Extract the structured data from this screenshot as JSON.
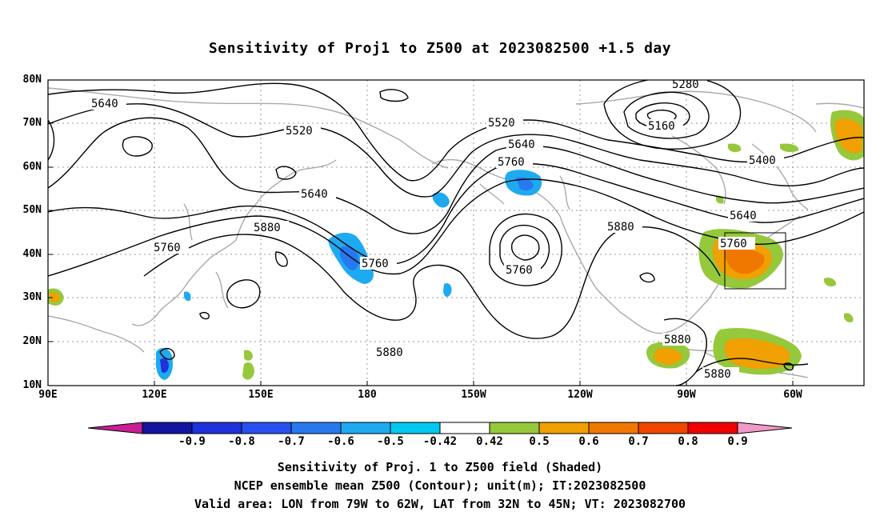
{
  "title": "Sensitivity of Proj1 to Z500 at 2023082500 +1.5 day",
  "lat_labels": [
    "80N",
    "70N",
    "60N",
    "50N",
    "40N",
    "30N",
    "20N",
    "10N"
  ],
  "lon_labels": [
    "90E",
    "120E",
    "150E",
    "180",
    "150W",
    "120W",
    "90W",
    "60W"
  ],
  "contour_labels": [
    "5640",
    "5520",
    "5520",
    "5640",
    "5760",
    "5880",
    "5760",
    "5640",
    "5760",
    "5880",
    "5760",
    "5880",
    "5880",
    "5280",
    "5160",
    "5400",
    "5640",
    "5760",
    "5880",
    "5880"
  ],
  "colorbar": {
    "labels": [
      "-0.9",
      "-0.8",
      "-0.7",
      "-0.6",
      "-0.5",
      "-0.42",
      "0.42",
      "0.5",
      "0.6",
      "0.7",
      "0.8",
      "0.9"
    ],
    "colors": [
      "#c81e96",
      "#1414a0",
      "#1e32dc",
      "#2850f0",
      "#2878f0",
      "#1eaaf0",
      "#00c8f0",
      "#ffffff",
      "#96c83c",
      "#f0a000",
      "#f07800",
      "#f04600",
      "#f00000",
      "#f09ac8"
    ]
  },
  "captions": [
    "Sensitivity of Proj. 1 to Z500 field (Shaded)",
    "NCEP ensemble mean Z500 (Contour); unit(m); IT:2023082500",
    "Valid area: LON from 79W to 62W, LAT from 32N to 45N; VT: 2023082700"
  ],
  "valid_box": {
    "lon_west": "79W",
    "lon_east": "62W",
    "lat_south": "32N",
    "lat_north": "45N"
  }
}
